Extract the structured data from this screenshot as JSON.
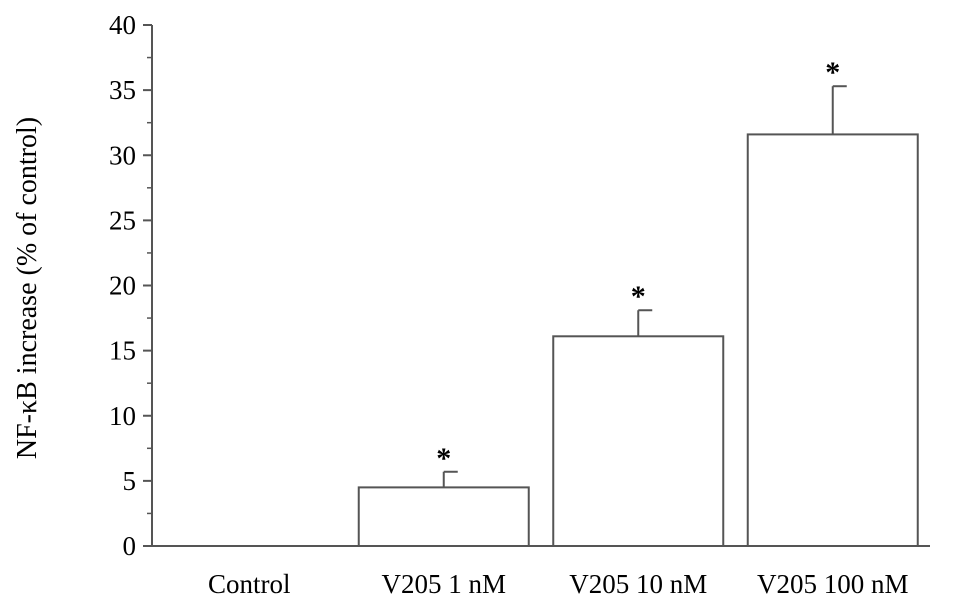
{
  "chart_data": {
    "type": "bar",
    "title": "",
    "xlabel": "",
    "ylabel": "NF-κB increase (% of control)",
    "categories": [
      "Control",
      "V205 1 nM",
      "V205 10 nM",
      "V205 100 nM"
    ],
    "values": [
      0,
      4.5,
      16.1,
      31.6
    ],
    "error": [
      0,
      1.2,
      2.0,
      3.7
    ],
    "significance": [
      "",
      "*",
      "*",
      "*"
    ],
    "ylim": [
      0,
      40
    ],
    "yticks": [
      0,
      5,
      10,
      15,
      20,
      25,
      30,
      35,
      40
    ],
    "grid": false,
    "bar_fill": "#ffffff",
    "bar_stroke": "#555555"
  }
}
